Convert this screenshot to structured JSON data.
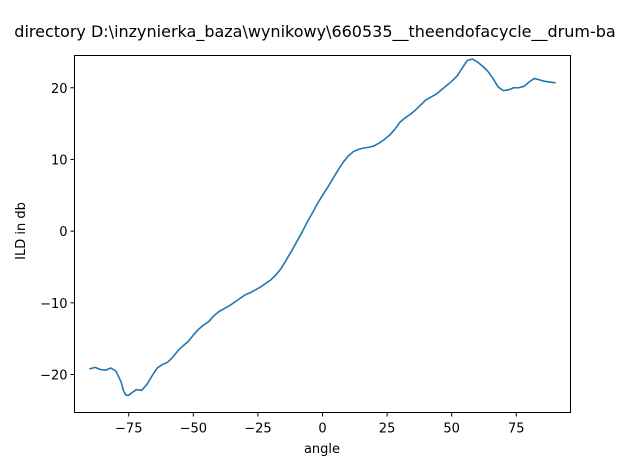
{
  "chart_data": {
    "type": "line",
    "title": "directory D:\\inzynierka_baza\\wynikowy\\660535__theendofacycle__drum-ba",
    "xlabel": "angle",
    "ylabel": "ILD in db",
    "xlim": [
      -96,
      96
    ],
    "ylim": [
      -25.3,
      24.5
    ],
    "x_ticks": [
      -75,
      -50,
      -25,
      0,
      25,
      50,
      75
    ],
    "x_tick_labels": [
      "−75",
      "−50",
      "−25",
      "0",
      "25",
      "50",
      "75"
    ],
    "y_ticks": [
      -20,
      -10,
      0,
      10,
      20
    ],
    "y_tick_labels": [
      "−20",
      "−10",
      "0",
      "10",
      "20"
    ],
    "grid": false,
    "colors": {
      "line": "#1f77b4",
      "axes": "#000000",
      "background": "#ffffff"
    },
    "series": [
      {
        "x": [
          -90,
          -88,
          -86,
          -84,
          -82,
          -80,
          -78,
          -77,
          -76,
          -75,
          -74,
          -72,
          -70,
          -68,
          -66,
          -64,
          -62,
          -60,
          -58,
          -56,
          -54,
          -52,
          -50,
          -48,
          -46,
          -44,
          -42,
          -40,
          -38,
          -36,
          -34,
          -32,
          -30,
          -28,
          -26,
          -24,
          -22,
          -20,
          -18,
          -16,
          -14,
          -12,
          -10,
          -8,
          -6,
          -4,
          -2,
          0,
          2,
          4,
          6,
          8,
          10,
          12,
          14,
          16,
          18,
          20,
          22,
          24,
          26,
          28,
          30,
          32,
          34,
          36,
          38,
          40,
          42,
          44,
          46,
          48,
          50,
          52,
          54,
          56,
          58,
          60,
          62,
          64,
          66,
          68,
          70,
          72,
          74,
          76,
          78,
          80,
          82,
          84,
          86,
          88,
          90
        ],
        "y": [
          -19.2,
          -19.0,
          -19.3,
          -19.4,
          -19.1,
          -19.5,
          -21.0,
          -22.3,
          -22.9,
          -22.9,
          -22.6,
          -22.1,
          -22.2,
          -21.4,
          -20.2,
          -19.1,
          -18.6,
          -18.3,
          -17.6,
          -16.7,
          -16.0,
          -15.4,
          -14.5,
          -13.7,
          -13.1,
          -12.6,
          -11.8,
          -11.2,
          -10.8,
          -10.4,
          -9.9,
          -9.4,
          -8.9,
          -8.6,
          -8.2,
          -7.8,
          -7.3,
          -6.8,
          -6.1,
          -5.2,
          -4.0,
          -2.8,
          -1.5,
          -0.2,
          1.2,
          2.5,
          3.8,
          5.0,
          6.1,
          7.3,
          8.5,
          9.6,
          10.5,
          11.1,
          11.4,
          11.6,
          11.7,
          11.9,
          12.3,
          12.8,
          13.4,
          14.2,
          15.2,
          15.8,
          16.3,
          16.9,
          17.6,
          18.3,
          18.7,
          19.1,
          19.7,
          20.3,
          20.9,
          21.6,
          22.7,
          23.8,
          24.0,
          23.6,
          23.0,
          22.3,
          21.3,
          20.1,
          19.6,
          19.7,
          20.0,
          20.0,
          20.2,
          20.8,
          21.3,
          21.1,
          20.9,
          20.8,
          20.7
        ]
      }
    ]
  }
}
